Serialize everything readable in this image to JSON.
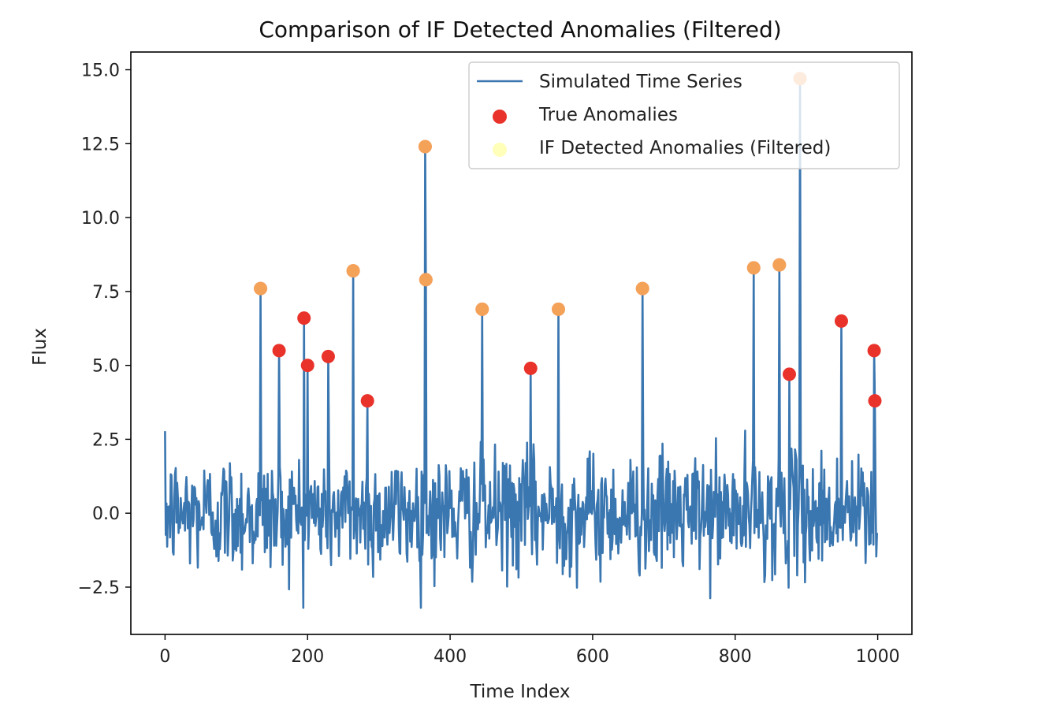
{
  "chart_data": {
    "type": "line",
    "title": "Comparison of IF Detected Anomalies (Filtered)",
    "xlabel": "Time Index",
    "ylabel": "Flux",
    "xlim": [
      -48,
      1048
    ],
    "ylim": [
      -4.1,
      15.6
    ],
    "xticks": [
      0,
      200,
      400,
      600,
      800,
      1000
    ],
    "xtick_labels": [
      "0",
      "200",
      "400",
      "600",
      "800",
      "1000"
    ],
    "yticks": [
      -2.5,
      0.0,
      2.5,
      5.0,
      7.5,
      10.0,
      12.5,
      15.0
    ],
    "ytick_labels": [
      "−2.5",
      "0.0",
      "2.5",
      "5.0",
      "7.5",
      "10.0",
      "12.5",
      "15.0"
    ],
    "grid": false,
    "legend_position": "top-right",
    "colors": {
      "line": "#3a76b0",
      "true_anomaly": "#e8322a",
      "if_detected": "#ffff80"
    },
    "series": [
      {
        "name": "Simulated Time Series",
        "kind": "line",
        "n_points": 1000,
        "noise_range": [
          -3.2,
          3.6
        ],
        "spikes": [
          {
            "x": 134,
            "y": 7.6
          },
          {
            "x": 160,
            "y": 5.5
          },
          {
            "x": 195,
            "y": 6.6
          },
          {
            "x": 200,
            "y": 5.0
          },
          {
            "x": 229,
            "y": 5.3
          },
          {
            "x": 264,
            "y": 8.2
          },
          {
            "x": 284,
            "y": 3.8
          },
          {
            "x": 365,
            "y": 12.4
          },
          {
            "x": 366,
            "y": 7.9
          },
          {
            "x": 445,
            "y": 6.9
          },
          {
            "x": 513,
            "y": 4.9
          },
          {
            "x": 552,
            "y": 6.9
          },
          {
            "x": 670,
            "y": 7.6
          },
          {
            "x": 826,
            "y": 8.3
          },
          {
            "x": 862,
            "y": 8.4
          },
          {
            "x": 876,
            "y": 4.7
          },
          {
            "x": 891,
            "y": 14.7
          },
          {
            "x": 949,
            "y": 6.5
          },
          {
            "x": 995,
            "y": 5.5
          },
          {
            "x": 996,
            "y": 3.8
          }
        ]
      },
      {
        "name": "True Anomalies",
        "kind": "scatter",
        "points": [
          {
            "x": 134,
            "y": 7.6
          },
          {
            "x": 160,
            "y": 5.5
          },
          {
            "x": 195,
            "y": 6.6
          },
          {
            "x": 200,
            "y": 5.0
          },
          {
            "x": 229,
            "y": 5.3
          },
          {
            "x": 264,
            "y": 8.2
          },
          {
            "x": 284,
            "y": 3.8
          },
          {
            "x": 365,
            "y": 12.4
          },
          {
            "x": 366,
            "y": 7.9
          },
          {
            "x": 445,
            "y": 6.9
          },
          {
            "x": 513,
            "y": 4.9
          },
          {
            "x": 552,
            "y": 6.9
          },
          {
            "x": 670,
            "y": 7.6
          },
          {
            "x": 826,
            "y": 8.3
          },
          {
            "x": 862,
            "y": 8.4
          },
          {
            "x": 876,
            "y": 4.7
          },
          {
            "x": 891,
            "y": 14.7
          },
          {
            "x": 949,
            "y": 6.5
          },
          {
            "x": 995,
            "y": 5.5
          },
          {
            "x": 996,
            "y": 3.8
          }
        ]
      },
      {
        "name": "IF Detected Anomalies (Filtered)",
        "kind": "scatter",
        "points": [
          {
            "x": 134,
            "y": 7.6
          },
          {
            "x": 264,
            "y": 8.2
          },
          {
            "x": 365,
            "y": 12.4
          },
          {
            "x": 366,
            "y": 7.9
          },
          {
            "x": 445,
            "y": 6.9
          },
          {
            "x": 552,
            "y": 6.9
          },
          {
            "x": 670,
            "y": 7.6
          },
          {
            "x": 826,
            "y": 8.3
          },
          {
            "x": 862,
            "y": 8.4
          },
          {
            "x": 891,
            "y": 14.7
          }
        ]
      }
    ],
    "legend": [
      {
        "label": "Simulated Time Series",
        "marker": "line"
      },
      {
        "label": "True Anomalies",
        "marker": "dot-red"
      },
      {
        "label": "IF Detected Anomalies (Filtered)",
        "marker": "dot-yellow"
      }
    ]
  }
}
